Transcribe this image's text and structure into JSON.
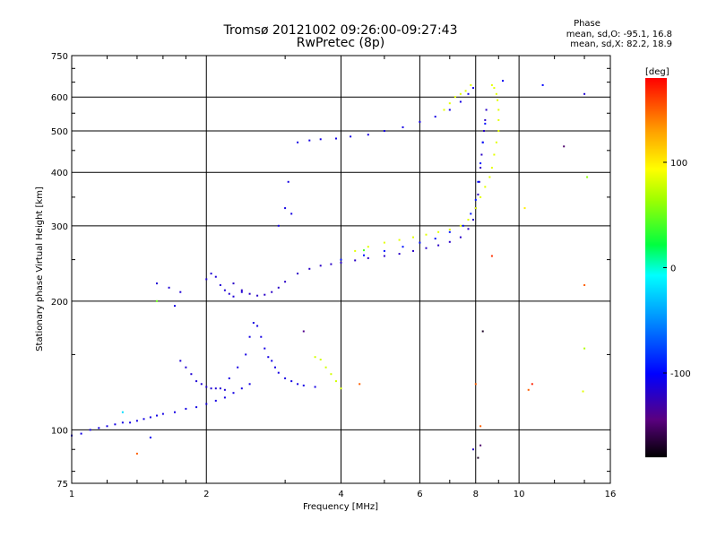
{
  "chart_data": {
    "type": "scatter",
    "title": "Tromsø 20121002 09:26:00-09:27:43",
    "subtitle": "RwPretec (8p)",
    "xlabel": "Frequency [MHz]",
    "ylabel": "Stationary phase Virtual Height [km]",
    "xscale": "log",
    "yscale": "log",
    "xlim": [
      1,
      16
    ],
    "ylim": [
      75,
      750
    ],
    "x_ticks": [
      1,
      2,
      4,
      6,
      8,
      10,
      16
    ],
    "y_ticks": [
      75,
      100,
      200,
      300,
      400,
      500,
      600,
      750
    ],
    "grid": true,
    "phase_stats": {
      "heading": "Phase",
      "o_mode": "mean, sd,O: -95.1, 16.8",
      "x_mode": "mean, sd,X:  82.2, 18.9"
    },
    "colorbar": {
      "label": "[deg]",
      "ticks": [
        "100",
        "0",
        "-100"
      ],
      "tick_values": [
        100,
        0,
        -100
      ],
      "range": [
        -180,
        180
      ]
    },
    "series": [
      {
        "mode": "O",
        "phase": -110,
        "x": [
          1.0,
          1.05,
          1.1,
          1.15,
          1.2,
          1.25,
          1.3,
          1.35,
          1.4,
          1.45,
          1.5,
          1.55,
          1.6,
          1.7,
          1.8,
          1.9,
          2.0,
          2.1,
          2.2,
          2.3,
          2.4,
          2.5
        ],
        "y": [
          97,
          98,
          100,
          101,
          102,
          103,
          104,
          104,
          105,
          106,
          107,
          108,
          109,
          110,
          112,
          113,
          115,
          117,
          119,
          122,
          125,
          128
        ]
      },
      {
        "mode": "O",
        "phase": -115,
        "x": [
          1.75,
          1.8,
          1.85,
          1.9,
          1.95,
          2.0,
          2.05,
          2.1,
          2.15,
          2.2
        ],
        "y": [
          145,
          140,
          135,
          130,
          128,
          126,
          125,
          125,
          125,
          124
        ]
      },
      {
        "mode": "O",
        "phase": -110,
        "x": [
          2.25,
          2.35,
          2.45,
          2.5,
          2.55,
          2.6,
          2.65,
          2.7,
          2.75,
          2.8,
          2.85,
          2.9,
          3.0,
          3.1,
          3.2,
          3.3,
          3.5
        ],
        "y": [
          132,
          140,
          150,
          165,
          178,
          175,
          165,
          155,
          148,
          145,
          140,
          136,
          132,
          130,
          128,
          127,
          126
        ]
      },
      {
        "mode": "O",
        "phase": -120,
        "x": [
          2.3,
          2.4,
          2.5,
          2.6,
          2.7,
          2.8,
          2.9,
          3.0,
          3.2,
          3.4,
          3.6,
          3.8,
          4.0,
          4.3,
          4.6,
          5.0,
          5.4,
          5.8,
          6.2,
          6.6,
          7.0,
          7.4,
          7.7,
          7.9,
          8.0,
          8.1,
          8.15,
          8.2,
          8.25,
          8.3,
          8.35,
          8.4,
          8.45
        ],
        "y": [
          220,
          212,
          208,
          206,
          207,
          210,
          215,
          222,
          232,
          238,
          242,
          244,
          246,
          249,
          252,
          255,
          258,
          262,
          266,
          270,
          275,
          282,
          295,
          310,
          330,
          355,
          380,
          410,
          440,
          470,
          500,
          530,
          560
        ]
      },
      {
        "mode": "O",
        "phase": -95,
        "x": [
          4.0,
          4.5,
          5.0,
          5.5,
          6.0,
          6.5,
          7.0,
          7.5,
          7.8,
          8.0,
          8.1,
          8.2,
          8.3,
          8.4
        ],
        "y": [
          250,
          256,
          262,
          268,
          274,
          280,
          290,
          300,
          320,
          345,
          380,
          420,
          470,
          520
        ]
      },
      {
        "mode": "O",
        "phase": -110,
        "x": [
          2.9,
          3.0,
          3.05,
          3.1,
          3.2,
          3.4,
          3.6,
          3.9,
          4.2,
          4.6,
          5.0,
          5.5,
          6.0,
          6.5,
          7.0,
          7.4,
          7.7,
          7.9
        ],
        "y": [
          300,
          330,
          380,
          320,
          470,
          475,
          478,
          480,
          485,
          490,
          500,
          510,
          525,
          540,
          560,
          585,
          610,
          630
        ]
      },
      {
        "mode": "O",
        "phase": -115,
        "x": [
          1.55,
          1.65,
          1.75,
          2.0,
          2.05,
          2.1,
          2.15,
          2.2,
          2.25,
          2.3,
          2.4
        ],
        "y": [
          220,
          215,
          210,
          225,
          232,
          228,
          218,
          212,
          208,
          205,
          210
        ]
      },
      {
        "mode": "X",
        "phase": 85,
        "x": [
          4.3,
          4.6,
          5.0,
          5.4,
          5.8,
          6.2,
          6.6,
          7.0,
          7.4,
          7.7,
          8.0,
          8.2,
          8.4,
          8.6,
          8.7,
          8.8,
          8.9,
          9.0,
          9.0,
          9.0,
          8.95,
          8.9,
          8.8,
          8.7
        ],
        "y": [
          262,
          268,
          274,
          278,
          282,
          286,
          290,
          294,
          300,
          310,
          330,
          350,
          370,
          390,
          410,
          440,
          470,
          500,
          530,
          560,
          590,
          610,
          630,
          640
        ]
      },
      {
        "mode": "X",
        "phase": 80,
        "x": [
          3.5,
          3.6,
          3.7,
          3.8,
          3.9,
          4.0
        ],
        "y": [
          148,
          146,
          140,
          135,
          130,
          125
        ]
      },
      {
        "mode": "X",
        "phase": 85,
        "x": [
          6.8,
          7.0,
          7.2,
          7.4,
          7.6,
          7.8
        ],
        "y": [
          560,
          580,
          600,
          610,
          620,
          640
        ]
      }
    ],
    "scattered_points": [
      {
        "x": 9.2,
        "y": 655,
        "phase": -105
      },
      {
        "x": 11.3,
        "y": 640,
        "phase": -100
      },
      {
        "x": 14.0,
        "y": 610,
        "phase": -115
      },
      {
        "x": 12.6,
        "y": 460,
        "phase": -150
      },
      {
        "x": 14.2,
        "y": 390,
        "phase": 60
      },
      {
        "x": 10.3,
        "y": 330,
        "phase": 100
      },
      {
        "x": 14.0,
        "y": 218,
        "phase": 150
      },
      {
        "x": 8.7,
        "y": 255,
        "phase": 165
      },
      {
        "x": 14.0,
        "y": 155,
        "phase": 70
      },
      {
        "x": 4.4,
        "y": 128,
        "phase": 150
      },
      {
        "x": 10.7,
        "y": 128,
        "phase": 170
      },
      {
        "x": 10.5,
        "y": 124,
        "phase": 150
      },
      {
        "x": 13.9,
        "y": 123,
        "phase": 85
      },
      {
        "x": 8.0,
        "y": 128,
        "phase": 150
      },
      {
        "x": 8.2,
        "y": 102,
        "phase": 150
      },
      {
        "x": 8.2,
        "y": 92,
        "phase": -150
      },
      {
        "x": 7.9,
        "y": 90,
        "phase": -120
      },
      {
        "x": 8.1,
        "y": 86,
        "phase": -170
      },
      {
        "x": 8.3,
        "y": 170,
        "phase": -170
      },
      {
        "x": 1.4,
        "y": 88,
        "phase": 150
      },
      {
        "x": 1.5,
        "y": 96,
        "phase": -105
      },
      {
        "x": 1.55,
        "y": 200,
        "phase": 50
      },
      {
        "x": 1.7,
        "y": 195,
        "phase": -110
      },
      {
        "x": 3.3,
        "y": 170,
        "phase": -140
      },
      {
        "x": 1.3,
        "y": 110,
        "phase": -20
      },
      {
        "x": 4.5,
        "y": 263,
        "phase": 40
      }
    ]
  }
}
